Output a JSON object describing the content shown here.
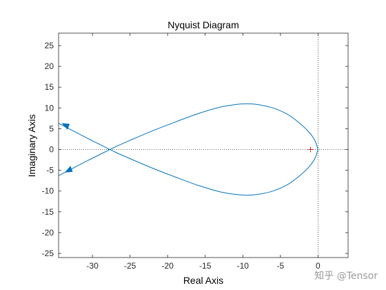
{
  "chart_data": {
    "type": "line",
    "title": "Nyquist Diagram",
    "xlabel": "Real Axis",
    "ylabel": "Imaginary Axis",
    "xlim": [
      -34.5,
      4
    ],
    "ylim": [
      -26,
      28
    ],
    "xticks": [
      -30,
      -25,
      -20,
      -15,
      -10,
      -5,
      0
    ],
    "yticks": [
      -25,
      -20,
      -15,
      -10,
      -5,
      0,
      5,
      10,
      15,
      20,
      25
    ],
    "grid": false,
    "critical_point": [
      -1,
      0
    ],
    "series": [
      {
        "color": "#0072bd",
        "x": [
          -34.5,
          -33.0,
          -31.0,
          -29.0,
          -27.0,
          -25.0,
          -22.0,
          -19.0,
          -16.0,
          -13.0,
          -11.0,
          -9.5,
          -8.0,
          -6.0,
          -4.0,
          -2.5,
          -1.2,
          -0.4,
          0.0
        ],
        "y": [
          -6.3,
          -4.9,
          -3.0,
          -1.2,
          0.6,
          2.2,
          4.5,
          6.6,
          8.6,
          10.2,
          10.8,
          11.0,
          10.8,
          10.0,
          8.4,
          6.4,
          4.2,
          2.1,
          0.0
        ]
      },
      {
        "color": "#0072bd",
        "x": [
          0.0,
          -0.4,
          -1.2,
          -2.5,
          -4.0,
          -6.0,
          -8.0,
          -9.5,
          -11.0,
          -13.0,
          -16.0,
          -19.0,
          -22.0,
          -25.0,
          -27.0,
          -29.0,
          -31.0,
          -33.0,
          -34.5
        ],
        "y": [
          0.0,
          -2.1,
          -4.2,
          -6.4,
          -8.4,
          -10.0,
          -10.8,
          -11.0,
          -10.8,
          -10.2,
          -8.6,
          -6.6,
          -4.5,
          -2.2,
          -0.6,
          1.2,
          3.0,
          4.9,
          6.3
        ]
      }
    ],
    "arrows": [
      {
        "x": -33.6,
        "y": 5.8,
        "direction": "left"
      },
      {
        "x": -33.2,
        "y": -5.0,
        "direction": "left"
      }
    ]
  },
  "watermark": "知乎 @Tensor"
}
